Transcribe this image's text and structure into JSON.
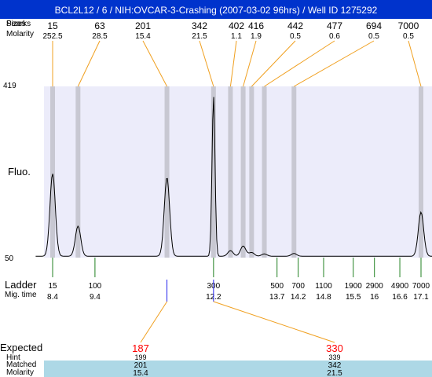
{
  "title": "BCL2L12 / 6 / NIH:OVCAR-3-Crashing (2007-03-02 96hrs) / Well ID 1275292",
  "header_rows": {
    "sizes_label": "Sizes",
    "molarity_label": "Molarity",
    "overlap_label": "Pearks"
  },
  "fluo_label": "Fluo.",
  "y_axis": {
    "top": "419",
    "bottom": "50"
  },
  "ladder_label": "Ladder",
  "migtime_label": "Mig. time",
  "expected_label": "Expected",
  "hint_label": "Hint",
  "matched_label": "Matched",
  "molarity2_label": "Molarity",
  "colors": {
    "title_bg": "#0033cc",
    "plot_bg": "#ececfa",
    "band": "#c8c8d2",
    "orange": "#f0a020",
    "green": "#208020",
    "blue": "#2222ee",
    "red": "#ff0000",
    "matched_bg": "#add8e6"
  },
  "chart_data": {
    "type": "line",
    "x_label": "",
    "y_label": "Fluo.",
    "ylim": [
      50,
      419
    ],
    "peaks": [
      {
        "size": "15",
        "molarity": "252.5",
        "mig_time": 8.4
      },
      {
        "size": "63",
        "molarity": "28.5",
        "mig_time": 9.0
      },
      {
        "size": "201",
        "molarity": "15.4",
        "mig_time": 11.1
      },
      {
        "size": "342",
        "molarity": "21.5",
        "mig_time": 12.2
      },
      {
        "size": "402",
        "molarity": "1.1",
        "mig_time": 12.6
      },
      {
        "size": "416",
        "molarity": "1.9",
        "mig_time": 12.9
      },
      {
        "size": "442",
        "molarity": "0.5",
        "mig_time": 13.1
      },
      {
        "size": "477",
        "molarity": "0.6",
        "mig_time": 13.4
      },
      {
        "size": "694",
        "molarity": "0.5",
        "mig_time": 14.1
      },
      {
        "size": "7000",
        "molarity": "0.5",
        "mig_time": 17.1
      }
    ],
    "ladder": [
      {
        "size": "15",
        "mig_time": "8.4"
      },
      {
        "size": "100",
        "mig_time": "9.4"
      },
      {
        "size": "300",
        "mig_time": "12.2"
      },
      {
        "size": "500",
        "mig_time": "13.7"
      },
      {
        "size": "700",
        "mig_time": "14.2"
      },
      {
        "size": "1100",
        "mig_time": "14.8"
      },
      {
        "size": "1900",
        "mig_time": "15.5"
      },
      {
        "size": "2900",
        "mig_time": "16"
      },
      {
        "size": "4900",
        "mig_time": "16.6"
      },
      {
        "size": "7000",
        "mig_time": "17.1"
      }
    ],
    "expected": [
      {
        "expected": "187",
        "hint": "199",
        "matched": "201",
        "molarity": "15.4"
      },
      {
        "expected": "330",
        "hint": "339",
        "matched": "342",
        "molarity": "21.5"
      }
    ],
    "trace_peaks": [
      {
        "mig_time": 8.4,
        "height": 178
      },
      {
        "mig_time": 9.0,
        "height": 65
      },
      {
        "mig_time": 11.1,
        "height": 170
      },
      {
        "mig_time": 12.2,
        "height": 345
      },
      {
        "mig_time": 12.6,
        "height": 12
      },
      {
        "mig_time": 12.9,
        "height": 22
      },
      {
        "mig_time": 13.1,
        "height": 8
      },
      {
        "mig_time": 13.4,
        "height": 5
      },
      {
        "mig_time": 14.1,
        "height": 6
      },
      {
        "mig_time": 17.1,
        "height": 95
      }
    ]
  }
}
